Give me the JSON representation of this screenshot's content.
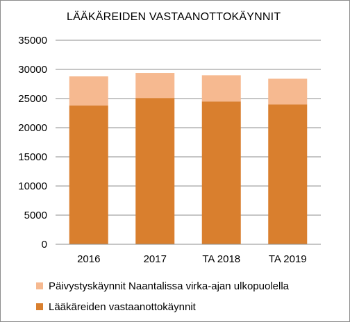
{
  "chart_data": {
    "type": "bar",
    "stacked": true,
    "title": "LÄÄKÄREIDEN VASTAANOTTOKÄYNNIT",
    "categories": [
      "2016",
      "2017",
      "TA 2018",
      "TA 2019"
    ],
    "series": [
      {
        "name": "Lääkäreiden vastaanottokäynnit",
        "values": [
          23800,
          25100,
          24500,
          24000
        ],
        "color": "#d97f2e"
      },
      {
        "name": "Päivystyskäynnit Naantalissa virka-ajan ulkopuolella",
        "values": [
          5000,
          4300,
          4500,
          4400
        ],
        "color": "#f6b990"
      }
    ],
    "ylim": [
      0,
      35000
    ],
    "yticks": [
      0,
      5000,
      10000,
      15000,
      20000,
      25000,
      30000,
      35000
    ],
    "grid": true,
    "legend_position": "bottom"
  }
}
